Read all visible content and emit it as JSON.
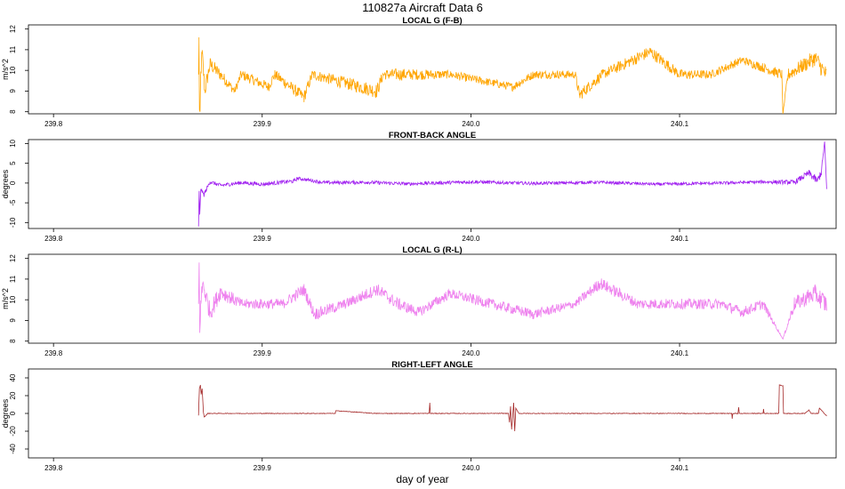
{
  "title": "110827a    Aircraft Data 6",
  "xlabel": "day of year",
  "chart_data": [
    {
      "type": "line",
      "title": "LOCAL G (F-B)",
      "ylabel": "m/s^2",
      "color": "#ffa500",
      "xlim": [
        239.788,
        240.175
      ],
      "ylim": [
        7.9,
        12.2
      ],
      "xticks": [
        239.8,
        239.9,
        240.0,
        240.1
      ],
      "xtick_labels": [
        "239.8",
        "239.9",
        "240.0",
        "240.1"
      ],
      "yticks": [
        8,
        9,
        10,
        11,
        12
      ],
      "ytick_labels": [
        "8",
        "9",
        "10",
        "11",
        "12"
      ],
      "x_start": 239.8695,
      "x_end": 240.1705,
      "series": [
        {
          "x": [
            239.8695,
            239.8697,
            239.8699,
            239.8702,
            239.8706,
            239.8712,
            239.8725,
            239.875,
            239.88,
            239.8868,
            239.89,
            239.903,
            239.906,
            239.92,
            239.924,
            239.955,
            239.958,
            239.965,
            239.99,
            240.02,
            240.03,
            240.05,
            240.052,
            240.063,
            240.086,
            240.1,
            240.115,
            240.13,
            240.149,
            240.1495,
            240.152,
            240.165,
            240.17
          ],
          "y": [
            9.8,
            11.6,
            8.1,
            8.0,
            9.9,
            10.8,
            9.0,
            10.3,
            9.8,
            9.0,
            9.8,
            9.2,
            9.8,
            8.7,
            9.8,
            9.0,
            9.8,
            9.8,
            9.8,
            9.2,
            9.8,
            9.8,
            8.8,
            9.8,
            10.9,
            9.8,
            9.8,
            10.5,
            9.8,
            7.9,
            9.8,
            10.6,
            9.8
          ],
          "band": [
            0,
            0,
            0,
            0,
            0.5,
            0.5,
            0.4,
            0.35,
            0.3,
            0.2,
            0.25,
            0.25,
            0.25,
            0.3,
            0.25,
            0.35,
            0.25,
            0.3,
            0.2,
            0.2,
            0.2,
            0.2,
            0.3,
            0.25,
            0.3,
            0.25,
            0.2,
            0.2,
            0.25,
            0,
            0.3,
            0.4,
            0.45
          ]
        }
      ]
    },
    {
      "type": "line",
      "title": "FRONT-BACK ANGLE",
      "ylabel": "degrees",
      "color": "#a020f0",
      "xlim": [
        239.788,
        240.175
      ],
      "ylim": [
        -11.5,
        11
      ],
      "xticks": [
        239.8,
        239.9,
        240.0,
        240.1
      ],
      "xtick_labels": [
        "239.8",
        "239.9",
        "240.0",
        "240.1"
      ],
      "yticks": [
        -10,
        -5,
        0,
        5,
        10
      ],
      "ytick_labels": [
        "-10",
        "-5",
        "0",
        "5",
        "10"
      ],
      "x_start": 239.8695,
      "x_end": 240.1705,
      "series": [
        {
          "x": [
            239.8695,
            239.8698,
            239.8701,
            239.8706,
            239.872,
            239.875,
            239.88,
            239.89,
            239.9,
            239.915,
            239.917,
            239.93,
            239.95,
            239.97,
            240.0,
            240.03,
            240.06,
            240.09,
            240.12,
            240.14,
            240.155,
            240.162,
            240.166,
            240.168,
            240.1695,
            240.1705
          ],
          "y": [
            -11.0,
            -2.0,
            -8.0,
            -1.5,
            -3.0,
            0.3,
            -0.6,
            0.1,
            -0.3,
            0.5,
            1.2,
            0.1,
            0.2,
            -0.2,
            0.3,
            -0.1,
            0.2,
            -0.3,
            0.0,
            0.3,
            0.2,
            2.5,
            0.5,
            3.0,
            10.5,
            -1.5
          ],
          "band": [
            0,
            0.4,
            0,
            0.3,
            0.6,
            0.5,
            0.5,
            0.5,
            0.5,
            0.5,
            0.4,
            0.45,
            0.45,
            0.45,
            0.45,
            0.4,
            0.4,
            0.4,
            0.4,
            0.4,
            0.6,
            0.9,
            1.0,
            1.2,
            0,
            0
          ]
        }
      ]
    },
    {
      "type": "line",
      "title": "LOCAL G (R-L)",
      "ylabel": "m/s^2",
      "color": "#ee82ee",
      "xlim": [
        239.788,
        240.175
      ],
      "ylim": [
        7.9,
        12.2
      ],
      "xticks": [
        239.8,
        239.9,
        240.0,
        240.1
      ],
      "xtick_labels": [
        "239.8",
        "239.9",
        "240.0",
        "240.1"
      ],
      "yticks": [
        8,
        9,
        10,
        11,
        12
      ],
      "ytick_labels": [
        "8",
        "9",
        "10",
        "11",
        "12"
      ],
      "x_start": 239.8695,
      "x_end": 240.1705,
      "series": [
        {
          "x": [
            239.8695,
            239.8698,
            239.8701,
            239.8706,
            239.8715,
            239.875,
            239.88,
            239.89,
            239.91,
            239.92,
            239.925,
            239.94,
            239.955,
            239.965,
            239.975,
            239.99,
            240.01,
            240.03,
            240.05,
            240.062,
            240.08,
            240.1,
            240.12,
            240.13,
            240.14,
            240.1495,
            240.155,
            240.165,
            240.17
          ],
          "y": [
            9.8,
            11.8,
            8.4,
            9.8,
            10.8,
            9.4,
            10.4,
            9.8,
            9.8,
            10.5,
            9.3,
            9.8,
            10.5,
            9.8,
            9.4,
            10.3,
            9.8,
            9.3,
            9.8,
            10.8,
            9.8,
            9.8,
            9.8,
            9.4,
            9.8,
            8.1,
            9.8,
            10.3,
            9.8
          ],
          "band": [
            0,
            0,
            0,
            0.5,
            0.5,
            0.45,
            0.4,
            0.25,
            0.25,
            0.3,
            0.3,
            0.25,
            0.3,
            0.3,
            0.25,
            0.25,
            0.25,
            0.25,
            0.2,
            0.3,
            0.25,
            0.25,
            0.25,
            0.25,
            0.25,
            0,
            0.35,
            0.45,
            0.5
          ]
        }
      ]
    },
    {
      "type": "line",
      "title": "RIGHT-LEFT ANGLE",
      "ylabel": "degrees",
      "color": "#a52a2a",
      "xlim": [
        239.788,
        240.175
      ],
      "ylim": [
        -50,
        50
      ],
      "xticks": [
        239.8,
        239.9,
        240.0,
        240.1
      ],
      "xtick_labels": [
        "239.8",
        "239.9",
        "240.0",
        "240.1"
      ],
      "yticks": [
        -40,
        -20,
        0,
        20,
        40
      ],
      "ytick_labels": [
        "-40",
        "-20",
        "0",
        "20",
        "40"
      ],
      "x_start": 239.8695,
      "x_end": 240.1705,
      "series": [
        {
          "x": [
            239.8695,
            239.8699,
            239.8704,
            239.8708,
            239.8712,
            239.8718,
            239.8722,
            239.874,
            239.9,
            239.935,
            239.9352,
            239.954,
            239.96,
            239.98,
            239.9803,
            239.9806,
            240.0,
            240.018,
            240.0185,
            240.019,
            240.0195,
            240.02,
            240.0205,
            240.021,
            240.0215,
            240.023,
            240.05,
            240.08,
            240.125,
            240.1252,
            240.1255,
            240.128,
            240.1283,
            240.1286,
            240.14,
            240.1402,
            240.1405,
            240.1475,
            240.1478,
            240.1495,
            240.1498,
            240.15,
            240.152,
            240.16,
            240.162,
            240.163,
            240.1665,
            240.167,
            240.1705
          ],
          "y": [
            -2,
            28,
            32,
            22,
            28,
            2,
            -4,
            0,
            0,
            0,
            3,
            0,
            0,
            0,
            12,
            0,
            0,
            0,
            -10,
            8,
            -18,
            -5,
            12,
            -20,
            6,
            0,
            0,
            0,
            0,
            -6,
            0,
            0,
            7,
            0,
            0,
            5,
            0,
            0,
            32,
            31,
            0,
            0,
            0,
            0,
            4,
            0,
            0,
            6,
            -3
          ]
        }
      ]
    }
  ]
}
